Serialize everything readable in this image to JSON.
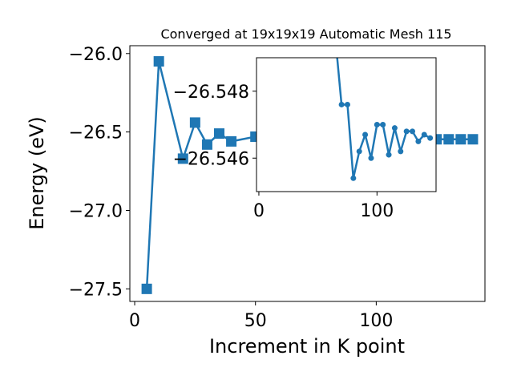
{
  "chart_data": [
    {
      "type": "line",
      "title": "Converged at 19x19x19 Automatic Mesh 115",
      "xlabel": "Increment in K point",
      "ylabel": "Energy (eV)",
      "xlim": [
        -2,
        145
      ],
      "ylim": [
        -27.58,
        -25.95
      ],
      "xticks": [
        0,
        50,
        100
      ],
      "yticks": [
        -27.5,
        -27.0,
        -26.5,
        -26.0
      ],
      "ytick_labels": [
        "−27.5",
        "−27.0",
        "−26.5",
        "−26.0"
      ],
      "grid": false,
      "color": "#1f77b4",
      "marker": "square",
      "series": [
        {
          "x": [
            5,
            10,
            20,
            25,
            30,
            35,
            40,
            50,
            60,
            65,
            70,
            75,
            80,
            85,
            90,
            95,
            100,
            105,
            110,
            115,
            120,
            125,
            130,
            135,
            140
          ],
          "y": [
            -27.5,
            -26.05,
            -26.67,
            -26.44,
            -26.58,
            -26.51,
            -26.56,
            -26.53,
            -26.545,
            -26.548,
            -26.547,
            -26.546,
            -26.547,
            -26.5465,
            -26.5468,
            -26.5466,
            -26.5467,
            -26.5466,
            -26.5467,
            -26.5466,
            -26.5466,
            -26.5466,
            -26.5466,
            -26.5466,
            -26.5466
          ]
        }
      ]
    },
    {
      "type": "line",
      "title": "",
      "xlabel": "",
      "ylabel": "",
      "xlim": [
        -2,
        150
      ],
      "ylim": [
        -26.545,
        -26.549
      ],
      "xticks": [
        0,
        100
      ],
      "yticks": [
        -26.548,
        -26.546
      ],
      "ytick_labels": [
        "−26.548",
        "−26.546"
      ],
      "grid": false,
      "color": "#1f77b4",
      "marker": "circle",
      "series": [
        {
          "x": [
            65,
            70,
            75,
            80,
            85,
            90,
            95,
            100,
            105,
            110,
            115,
            120,
            125,
            130,
            135,
            140,
            145
          ],
          "y": [
            -26.5495,
            -26.5476,
            -26.5476,
            -26.5454,
            -26.5462,
            -26.5467,
            -26.546,
            -26.547,
            -26.547,
            -26.5461,
            -26.5469,
            -26.5462,
            -26.5468,
            -26.5468,
            -26.5465,
            -26.5467,
            -26.5466
          ]
        }
      ]
    }
  ]
}
